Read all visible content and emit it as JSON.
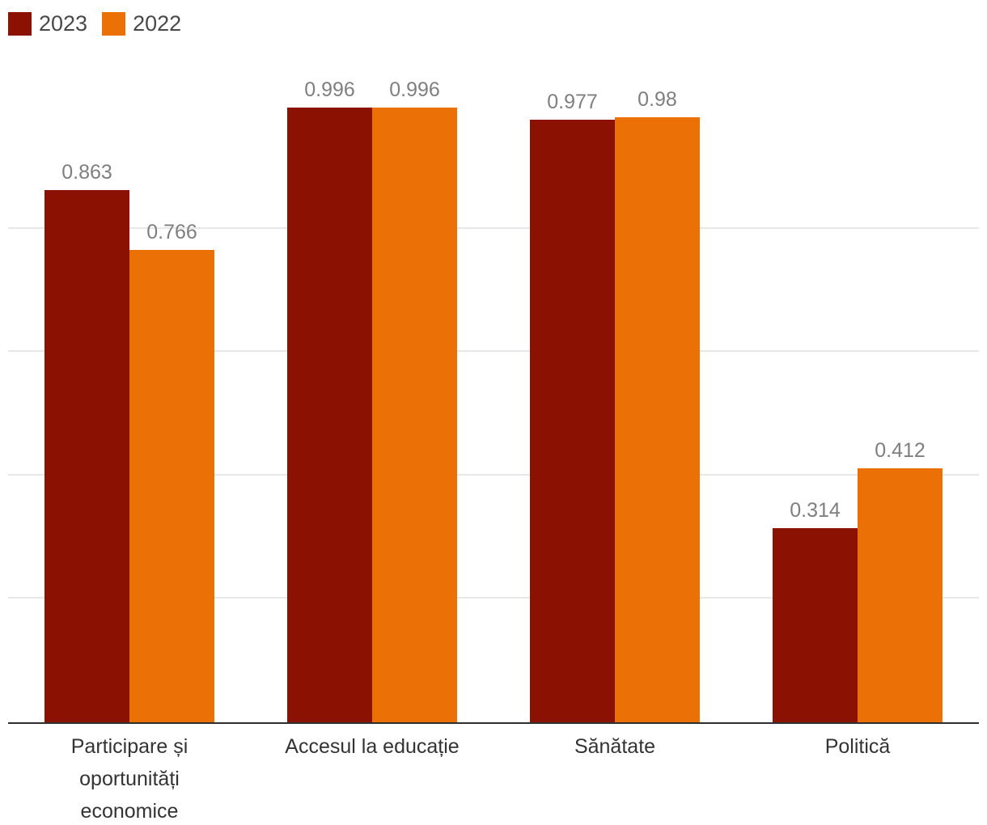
{
  "chart_data": {
    "type": "bar",
    "title": "",
    "xlabel": "",
    "ylabel": "",
    "categories": [
      "Participare și oportunități economice",
      "Accesul la educație",
      "Sănătate",
      "Politică"
    ],
    "series": [
      {
        "name": "2023",
        "color": "#8B1202",
        "values": [
          0.863,
          0.996,
          0.977,
          0.314
        ],
        "display": [
          "0.863",
          "0.996",
          "0.977",
          "0.314"
        ]
      },
      {
        "name": "2022",
        "color": "#EB7005",
        "values": [
          0.766,
          0.996,
          0.98,
          0.412
        ],
        "display": [
          "0.766",
          "0.996",
          "0.98",
          "0.412"
        ]
      }
    ],
    "ylim": [
      0,
      1
    ],
    "gridlines": [
      0.2,
      0.4,
      0.6,
      0.8
    ],
    "grid": true,
    "legend_position": "top-left"
  },
  "colors": {
    "series_2023": "#8B1202",
    "series_2022": "#EB7005",
    "value_label": "#7F7F7F",
    "category_label": "#333333",
    "legend_label": "#494949",
    "gridline": "#E7E7E7",
    "axis_line": "#2F2F2F",
    "background": "#FFFFFF"
  }
}
